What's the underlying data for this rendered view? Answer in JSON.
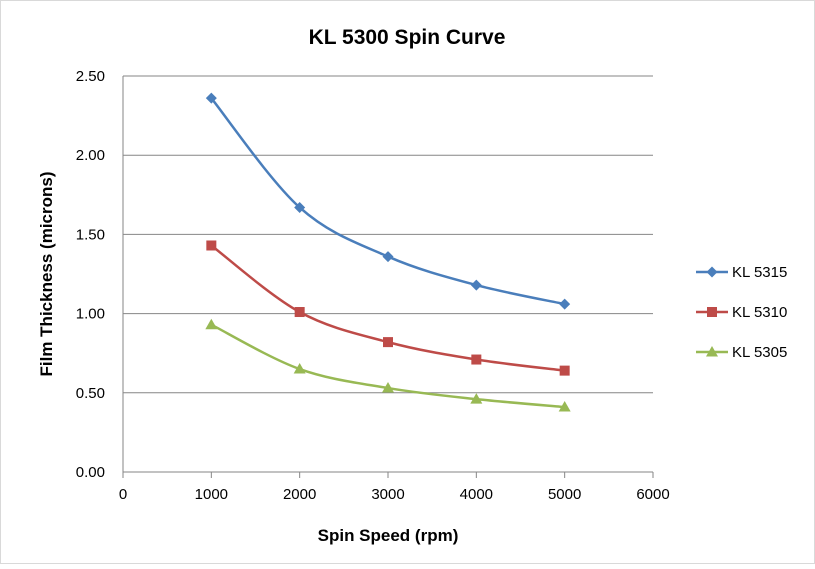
{
  "chart_data": {
    "type": "line",
    "title": "KL 5300 Spin Curve",
    "xlabel": "Spin Speed (rpm)",
    "ylabel": "Film Thickness (microns)",
    "xlim": [
      0,
      6000
    ],
    "ylim": [
      0,
      2.5
    ],
    "x_ticks": [
      "0",
      "1000",
      "2000",
      "3000",
      "4000",
      "5000",
      "6000"
    ],
    "y_ticks": [
      "0.00",
      "0.50",
      "1.00",
      "1.50",
      "2.00",
      "2.50"
    ],
    "grid": "horizontal",
    "legend_position": "right",
    "smooth": true,
    "x": [
      1000,
      2000,
      3000,
      4000,
      5000
    ],
    "series": [
      {
        "name": "KL 5315",
        "color": "#4a7ebb",
        "marker": "diamond",
        "values": [
          2.36,
          1.67,
          1.36,
          1.18,
          1.06
        ]
      },
      {
        "name": "KL 5310",
        "color": "#be4b48",
        "marker": "square",
        "values": [
          1.43,
          1.01,
          0.82,
          0.71,
          0.64
        ]
      },
      {
        "name": "KL 5305",
        "color": "#98b954",
        "marker": "triangle",
        "values": [
          0.93,
          0.65,
          0.53,
          0.46,
          0.41
        ]
      }
    ]
  }
}
